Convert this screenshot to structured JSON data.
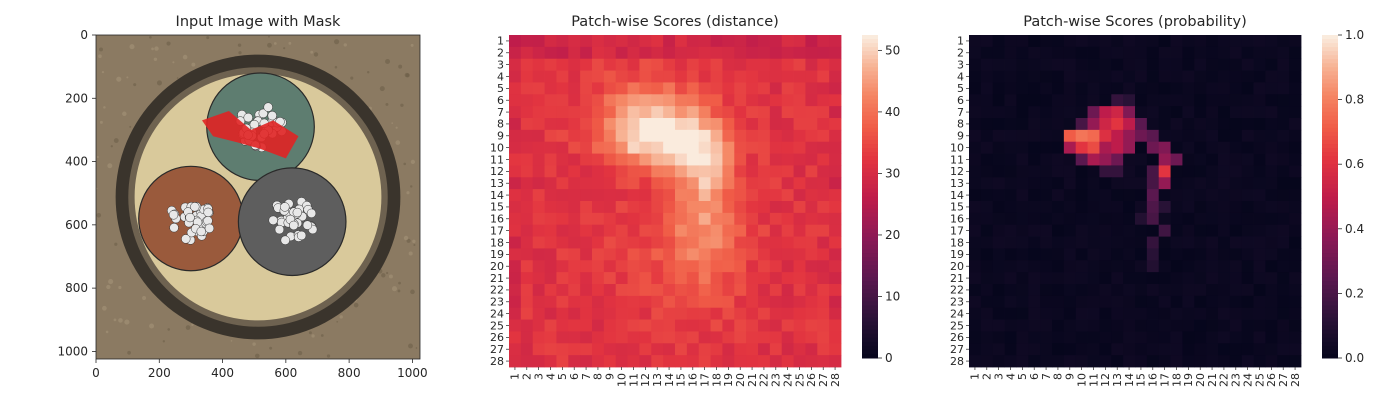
{
  "figure": {
    "panels": [
      {
        "title": "Input Image with Mask",
        "type": "image",
        "x_ticks": [
          "0",
          "200",
          "400",
          "600",
          "800",
          "1000"
        ],
        "y_ticks": [
          "0",
          "200",
          "400",
          "600",
          "800",
          "1000"
        ],
        "xlim": [
          0,
          1024
        ],
        "ylim": [
          1024,
          0
        ],
        "image_description_for_render": {
          "background": "#8b7a62",
          "dish_outer": "#3a342c",
          "dish_inner": "#d9c99b",
          "cable_green": "#5e7d70",
          "cable_brown": "#9a5a3c",
          "cable_grey": "#5e5e5e",
          "wire_color": "#e8e8e8",
          "mask_color": "#e02424"
        }
      },
      {
        "title": "Patch-wise Scores (distance)",
        "type": "heatmap",
        "grid_size": 28,
        "colorbar": {
          "min": 0,
          "max": 52.5,
          "ticks": [
            "0",
            "10",
            "20",
            "30",
            "40",
            "50"
          ]
        }
      },
      {
        "title": "Patch-wise Scores (probability)",
        "type": "heatmap",
        "grid_size": 28,
        "colorbar": {
          "min": 0,
          "max": 1,
          "ticks": [
            "0.0",
            "0.2",
            "0.4",
            "0.6",
            "0.8",
            "1.0"
          ]
        }
      }
    ]
  },
  "chart_data": [
    {
      "type": "image",
      "title": "Input Image with Mask",
      "xlim": [
        0,
        1024
      ],
      "ylim": [
        1024,
        0
      ],
      "x_ticks": [
        0,
        200,
        400,
        600,
        800,
        1000
      ],
      "y_ticks": [
        0,
        200,
        400,
        600,
        800,
        1000
      ]
    },
    {
      "type": "heatmap",
      "title": "Patch-wise Scores (distance)",
      "rows": 28,
      "cols": 28,
      "row_labels": [
        "1",
        "2",
        "3",
        "4",
        "5",
        "6",
        "7",
        "8",
        "9",
        "10",
        "11",
        "12",
        "13",
        "14",
        "15",
        "16",
        "17",
        "18",
        "19",
        "20",
        "21",
        "22",
        "23",
        "24",
        "25",
        "26",
        "27",
        "28"
      ],
      "col_labels": [
        "1",
        "2",
        "3",
        "4",
        "5",
        "6",
        "7",
        "8",
        "9",
        "10",
        "11",
        "12",
        "13",
        "14",
        "15",
        "16",
        "17",
        "18",
        "19",
        "20",
        "21",
        "22",
        "23",
        "24",
        "25",
        "26",
        "27",
        "28"
      ],
      "value_range": [
        0,
        52.5
      ],
      "baseline": 32,
      "hotspots": [
        {
          "row": 9,
          "col": 13,
          "sigma_r": 1.8,
          "sigma_c": 3.0,
          "amp": 18
        },
        {
          "row": 7,
          "col": 12,
          "sigma_r": 2.5,
          "sigma_c": 3.2,
          "amp": 8
        },
        {
          "row": 15,
          "col": 17,
          "sigma_r": 4.5,
          "sigma_c": 2.0,
          "amp": 10
        },
        {
          "row": 11,
          "col": 17,
          "sigma_r": 2.0,
          "sigma_c": 1.6,
          "amp": 9
        },
        {
          "row": 19,
          "col": 15,
          "sigma_r": 3.5,
          "sigma_c": 4.0,
          "amp": 4
        }
      ],
      "noise": 2.5
    },
    {
      "type": "heatmap",
      "title": "Patch-wise Scores (probability)",
      "rows": 28,
      "cols": 28,
      "row_labels": [
        "1",
        "2",
        "3",
        "4",
        "5",
        "6",
        "7",
        "8",
        "9",
        "10",
        "11",
        "12",
        "13",
        "14",
        "15",
        "16",
        "17",
        "18",
        "19",
        "20",
        "21",
        "22",
        "23",
        "24",
        "25",
        "26",
        "27",
        "28"
      ],
      "col_labels": [
        "1",
        "2",
        "3",
        "4",
        "5",
        "6",
        "7",
        "8",
        "9",
        "10",
        "11",
        "12",
        "13",
        "14",
        "15",
        "16",
        "17",
        "18",
        "19",
        "20",
        "21",
        "22",
        "23",
        "24",
        "25",
        "26",
        "27",
        "28"
      ],
      "value_range": [
        0,
        1
      ],
      "baseline": 0.01,
      "cells": [
        {
          "row": 9,
          "col": 9,
          "value": 0.72
        },
        {
          "row": 9,
          "col": 10,
          "value": 0.78
        },
        {
          "row": 9,
          "col": 11,
          "value": 0.75
        },
        {
          "row": 9,
          "col": 12,
          "value": 0.6
        },
        {
          "row": 10,
          "col": 10,
          "value": 0.62
        },
        {
          "row": 10,
          "col": 11,
          "value": 0.68
        },
        {
          "row": 10,
          "col": 9,
          "value": 0.45
        },
        {
          "row": 8,
          "col": 11,
          "value": 0.4
        },
        {
          "row": 8,
          "col": 12,
          "value": 0.55
        },
        {
          "row": 8,
          "col": 13,
          "value": 0.62
        },
        {
          "row": 8,
          "col": 14,
          "value": 0.5
        },
        {
          "row": 7,
          "col": 12,
          "value": 0.5
        },
        {
          "row": 7,
          "col": 13,
          "value": 0.55
        },
        {
          "row": 7,
          "col": 11,
          "value": 0.3
        },
        {
          "row": 7,
          "col": 14,
          "value": 0.35
        },
        {
          "row": 9,
          "col": 13,
          "value": 0.5
        },
        {
          "row": 9,
          "col": 14,
          "value": 0.4
        },
        {
          "row": 10,
          "col": 12,
          "value": 0.45
        },
        {
          "row": 10,
          "col": 13,
          "value": 0.5
        },
        {
          "row": 10,
          "col": 14,
          "value": 0.4
        },
        {
          "row": 11,
          "col": 11,
          "value": 0.45
        },
        {
          "row": 11,
          "col": 12,
          "value": 0.4
        },
        {
          "row": 11,
          "col": 13,
          "value": 0.3
        },
        {
          "row": 10,
          "col": 16,
          "value": 0.3
        },
        {
          "row": 10,
          "col": 17,
          "value": 0.35
        },
        {
          "row": 11,
          "col": 17,
          "value": 0.4
        },
        {
          "row": 11,
          "col": 18,
          "value": 0.3
        },
        {
          "row": 12,
          "col": 17,
          "value": 0.62
        },
        {
          "row": 13,
          "col": 17,
          "value": 0.4
        },
        {
          "row": 14,
          "col": 16,
          "value": 0.25
        },
        {
          "row": 15,
          "col": 16,
          "value": 0.22
        },
        {
          "row": 16,
          "col": 16,
          "value": 0.2
        },
        {
          "row": 17,
          "col": 17,
          "value": 0.18
        },
        {
          "row": 18,
          "col": 16,
          "value": 0.15
        },
        {
          "row": 19,
          "col": 16,
          "value": 0.12
        },
        {
          "row": 20,
          "col": 16,
          "value": 0.1
        },
        {
          "row": 8,
          "col": 10,
          "value": 0.2
        },
        {
          "row": 8,
          "col": 15,
          "value": 0.25
        },
        {
          "row": 9,
          "col": 15,
          "value": 0.3
        },
        {
          "row": 9,
          "col": 16,
          "value": 0.25
        },
        {
          "row": 11,
          "col": 10,
          "value": 0.25
        },
        {
          "row": 12,
          "col": 12,
          "value": 0.15
        },
        {
          "row": 12,
          "col": 13,
          "value": 0.15
        },
        {
          "row": 12,
          "col": 16,
          "value": 0.2
        },
        {
          "row": 13,
          "col": 16,
          "value": 0.2
        },
        {
          "row": 6,
          "col": 13,
          "value": 0.15
        },
        {
          "row": 6,
          "col": 14,
          "value": 0.12
        },
        {
          "row": 15,
          "col": 17,
          "value": 0.12
        },
        {
          "row": 16,
          "col": 15,
          "value": 0.1
        }
      ]
    }
  ]
}
